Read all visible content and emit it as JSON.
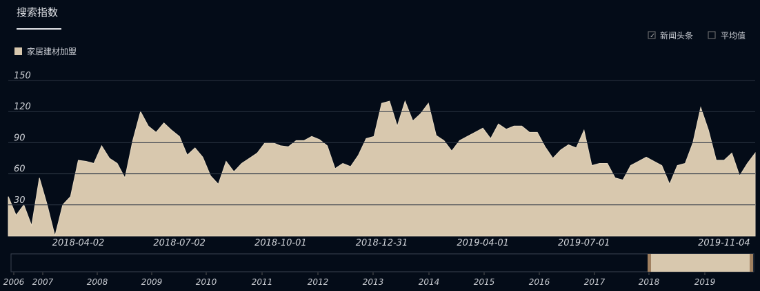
{
  "ui": {
    "tab": "搜索指数",
    "options": [
      "新闻头条",
      "平均值"
    ]
  },
  "slider": {
    "years": [
      "2006",
      "2007",
      "2008",
      "2009",
      "2010",
      "2011",
      "2012",
      "2013",
      "2014",
      "2015",
      "2016",
      "2017",
      "2018",
      "2019"
    ]
  },
  "chart_data": {
    "type": "area",
    "categories": [
      null,
      null,
      null,
      null,
      null,
      null,
      null,
      null,
      null,
      "2018-04-02",
      null,
      null,
      null,
      null,
      null,
      null,
      null,
      null,
      null,
      null,
      null,
      null,
      "2018-07-02",
      null,
      null,
      null,
      null,
      null,
      null,
      null,
      null,
      null,
      null,
      null,
      null,
      "2018-10-01",
      null,
      null,
      null,
      null,
      null,
      null,
      null,
      null,
      null,
      null,
      null,
      null,
      "2018-12-31",
      null,
      null,
      null,
      null,
      null,
      null,
      null,
      null,
      null,
      null,
      null,
      null,
      "2019-04-01",
      null,
      null,
      null,
      null,
      null,
      null,
      null,
      null,
      null,
      null,
      null,
      null,
      "2019-07-01",
      null,
      null,
      null,
      null,
      null,
      null,
      null,
      null,
      null,
      null,
      null,
      null,
      null,
      null,
      null,
      null,
      null,
      "2019-11-04",
      null,
      null,
      null,
      null
    ],
    "series": [
      {
        "name": "家居建材加盟",
        "color": "#d8c8ae",
        "values": [
          38,
          20,
          30,
          10,
          56,
          30,
          0,
          30,
          38,
          73,
          72,
          70,
          87,
          75,
          70,
          56,
          92,
          120,
          106,
          100,
          109,
          102,
          96,
          78,
          85,
          76,
          58,
          50,
          72,
          62,
          70,
          75,
          80,
          90,
          90,
          87,
          86,
          92,
          92,
          96,
          93,
          87,
          65,
          70,
          67,
          78,
          94,
          96,
          128,
          130,
          106,
          130,
          111,
          118,
          128,
          97,
          92,
          82,
          92,
          96,
          100,
          104,
          94,
          108,
          103,
          106,
          106,
          100,
          100,
          86,
          75,
          83,
          88,
          85,
          102,
          68,
          70,
          70,
          56,
          54,
          68,
          72,
          76,
          72,
          68,
          50,
          68,
          70,
          90,
          124,
          102,
          73,
          73,
          80,
          58,
          70,
          80
        ]
      }
    ],
    "ylim": [
      0,
      150
    ],
    "yticks": [
      30,
      60,
      90,
      120,
      150
    ],
    "grid": true
  }
}
